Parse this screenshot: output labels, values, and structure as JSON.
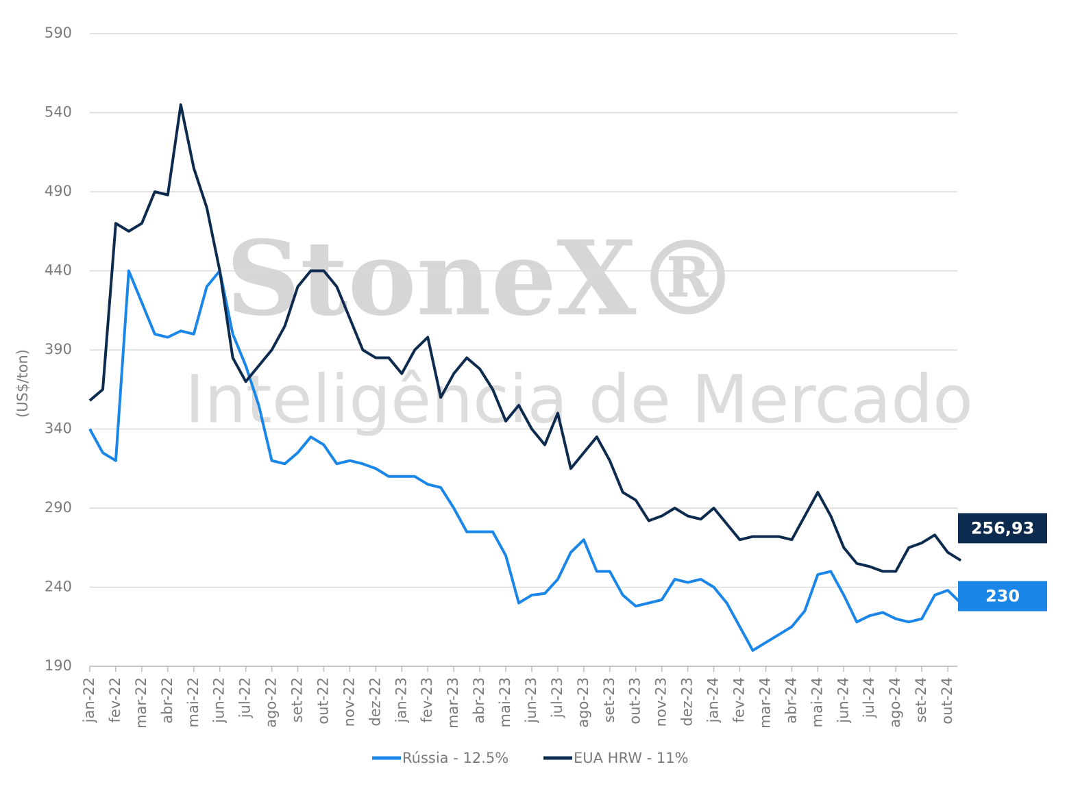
{
  "chart_data": {
    "type": "line",
    "y_label": "(US$/ton)",
    "watermark": [
      "StoneX®",
      "Inteligência de Mercado"
    ],
    "categories": [
      "jan-22",
      null,
      "fev-22",
      null,
      "mar-22",
      null,
      "abr-22",
      null,
      "mai-22",
      null,
      "jun-22",
      null,
      "jul-22",
      null,
      "ago-22",
      null,
      "set-22",
      null,
      "out-22",
      null,
      "nov-22",
      null,
      "dez-22",
      null,
      "jan-23",
      null,
      "fev-23",
      null,
      "mar-23",
      null,
      "abr-23",
      null,
      "mai-23",
      null,
      "jun-23",
      null,
      "jul-23",
      null,
      "ago-23",
      null,
      "set-23",
      null,
      "out-23",
      null,
      "nov-23",
      null,
      "dez-23",
      null,
      "jan-24",
      null,
      "fev-24",
      null,
      "mar-24",
      null,
      "abr-24",
      null,
      "mai-24",
      null,
      "jun-24",
      null,
      "jul-24",
      null,
      "ago-24",
      null,
      "set-24",
      null,
      "out-24",
      null
    ],
    "series": [
      {
        "name": "Rússia - 12.5%",
        "color": "#1a86e8",
        "values": [
          340,
          325,
          320,
          440,
          420,
          400,
          398,
          402,
          400,
          430,
          440,
          400,
          380,
          355,
          320,
          318,
          325,
          335,
          330,
          318,
          320,
          318,
          315,
          310,
          310,
          310,
          305,
          303,
          290,
          275,
          275,
          275,
          260,
          230,
          235,
          236,
          245,
          262,
          270,
          250,
          250,
          235,
          228,
          230,
          232,
          245,
          243,
          245,
          240,
          230,
          215,
          200,
          205,
          210,
          215,
          225,
          248,
          250,
          235,
          218,
          222,
          224,
          220,
          218,
          220,
          235,
          238,
          230
        ]
      },
      {
        "name": "EUA HRW - 11%",
        "color": "#0d2b4e",
        "values": [
          358,
          365,
          470,
          465,
          470,
          490,
          488,
          545,
          505,
          480,
          440,
          385,
          370,
          380,
          390,
          405,
          430,
          440,
          440,
          430,
          410,
          390,
          385,
          385,
          375,
          390,
          398,
          360,
          375,
          385,
          378,
          365,
          345,
          355,
          340,
          330,
          350,
          315,
          325,
          335,
          320,
          300,
          295,
          282,
          285,
          290,
          285,
          283,
          290,
          280,
          270,
          272,
          272,
          272,
          270,
          285,
          300,
          285,
          265,
          255,
          253,
          250,
          250,
          265,
          268,
          273,
          262,
          256.93
        ],
        "value_labels": [
          null,
          null,
          null,
          null,
          null,
          null,
          null,
          null,
          null,
          null,
          null,
          null,
          null,
          null,
          null,
          null,
          null,
          null,
          null,
          null,
          null,
          null,
          null,
          null,
          null,
          null,
          null,
          null,
          null,
          null,
          null,
          null,
          null,
          null,
          null,
          null,
          null,
          null,
          null,
          null,
          null,
          null,
          null,
          null,
          null,
          null,
          null,
          null,
          null,
          null,
          null,
          null,
          null,
          null,
          null,
          null,
          null,
          null,
          null,
          null,
          null,
          null,
          null,
          null,
          null,
          null,
          null,
          "256,93"
        ]
      }
    ],
    "ylim": [
      190,
      590
    ],
    "yticks": [
      190,
      240,
      290,
      340,
      390,
      440,
      490,
      540,
      590
    ],
    "grid": true,
    "legend": "bottom"
  }
}
